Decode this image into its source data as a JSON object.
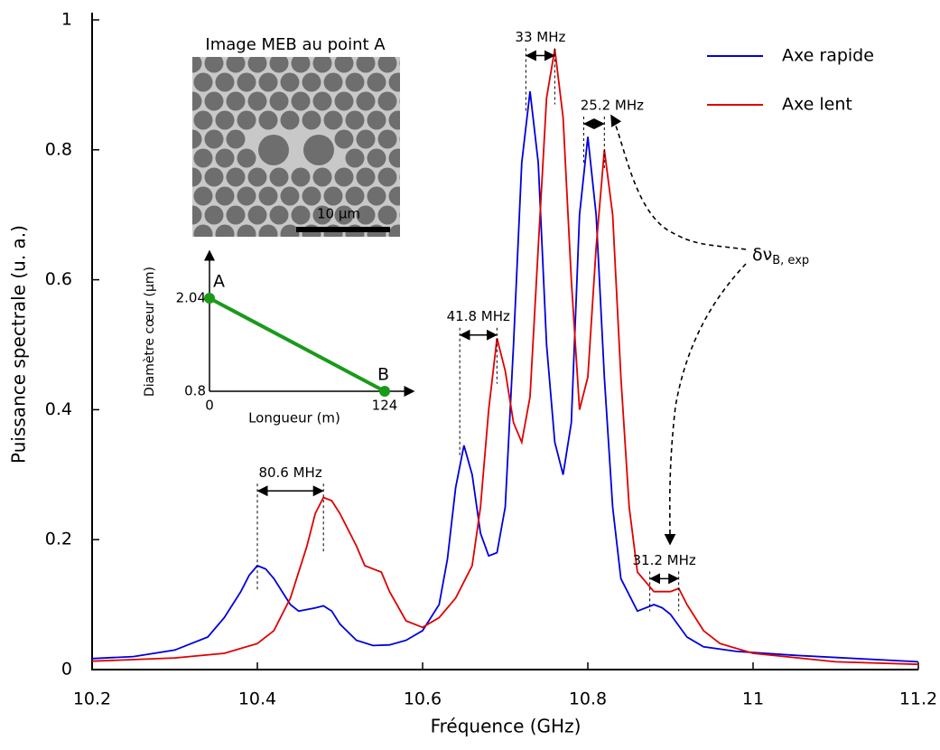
{
  "chart_data": {
    "type": "line",
    "xlabel": "Fréquence (GHz)",
    "ylabel": "Puissance spectrale (u. a.)",
    "xlim": [
      10.2,
      11.2
    ],
    "ylim": [
      0,
      1
    ],
    "xticks": [
      10.2,
      10.4,
      10.6,
      10.8,
      11,
      11.2
    ],
    "yticks": [
      0,
      0.2,
      0.4,
      0.6,
      0.8,
      1
    ],
    "legend": "upper right",
    "series": [
      {
        "name": "Axe rapide",
        "color": "#0000dd",
        "x": [
          10.2,
          10.25,
          10.3,
          10.34,
          10.36,
          10.38,
          10.39,
          10.4,
          10.41,
          10.42,
          10.44,
          10.45,
          10.47,
          10.48,
          10.49,
          10.5,
          10.52,
          10.54,
          10.56,
          10.58,
          10.6,
          10.62,
          10.63,
          10.64,
          10.65,
          10.66,
          10.67,
          10.68,
          10.69,
          10.7,
          10.71,
          10.72,
          10.73,
          10.74,
          10.75,
          10.76,
          10.77,
          10.78,
          10.79,
          10.8,
          10.81,
          10.82,
          10.83,
          10.84,
          10.86,
          10.88,
          10.89,
          10.9,
          10.92,
          10.94,
          10.98,
          11.05,
          11.2
        ],
        "values": [
          0.017,
          0.02,
          0.03,
          0.05,
          0.08,
          0.12,
          0.145,
          0.16,
          0.155,
          0.14,
          0.1,
          0.09,
          0.095,
          0.098,
          0.09,
          0.07,
          0.045,
          0.037,
          0.038,
          0.045,
          0.06,
          0.1,
          0.17,
          0.28,
          0.345,
          0.3,
          0.21,
          0.175,
          0.18,
          0.25,
          0.5,
          0.78,
          0.89,
          0.78,
          0.5,
          0.35,
          0.3,
          0.38,
          0.7,
          0.82,
          0.7,
          0.45,
          0.25,
          0.14,
          0.09,
          0.1,
          0.095,
          0.085,
          0.05,
          0.035,
          0.028,
          0.022,
          0.012
        ]
      },
      {
        "name": "Axe lent",
        "color": "#e00000",
        "x": [
          10.2,
          10.3,
          10.36,
          10.4,
          10.42,
          10.44,
          10.46,
          10.47,
          10.48,
          10.49,
          10.5,
          10.52,
          10.53,
          10.54,
          10.55,
          10.56,
          10.58,
          10.6,
          10.62,
          10.64,
          10.66,
          10.67,
          10.68,
          10.69,
          10.7,
          10.71,
          10.72,
          10.73,
          10.74,
          10.75,
          10.76,
          10.77,
          10.78,
          10.79,
          10.8,
          10.81,
          10.82,
          10.83,
          10.84,
          10.85,
          10.86,
          10.88,
          10.9,
          10.91,
          10.92,
          10.94,
          10.96,
          11.0,
          11.1,
          11.2
        ],
        "values": [
          0.013,
          0.018,
          0.025,
          0.04,
          0.06,
          0.11,
          0.19,
          0.24,
          0.265,
          0.26,
          0.24,
          0.19,
          0.16,
          0.155,
          0.15,
          0.12,
          0.075,
          0.065,
          0.08,
          0.11,
          0.16,
          0.25,
          0.4,
          0.51,
          0.46,
          0.38,
          0.35,
          0.42,
          0.65,
          0.88,
          0.955,
          0.85,
          0.6,
          0.4,
          0.45,
          0.65,
          0.8,
          0.7,
          0.45,
          0.25,
          0.15,
          0.12,
          0.12,
          0.125,
          0.1,
          0.06,
          0.04,
          0.025,
          0.012,
          0.008
        ]
      }
    ],
    "annotations": [
      "80.6 MHz",
      "41.8 MHz",
      "33 MHz",
      "25.2 MHz",
      "31.2 MHz"
    ],
    "shift_label": {
      "text": "δν",
      "subscript": "B, exp"
    },
    "sem_image": {
      "title": "Image MEB au point A",
      "scale_bar": "10 µm"
    },
    "inset": {
      "type": "line",
      "color": "#1a9a1a",
      "xlabel": "Longueur (m)",
      "ylabel": "Diamètre cœur (µm)",
      "x": [
        0,
        124
      ],
      "values": [
        2.04,
        0.8
      ],
      "point_labels": [
        "A",
        "B"
      ],
      "xticks": [
        0,
        124
      ],
      "yticks": [
        0.8,
        2.04
      ]
    }
  }
}
